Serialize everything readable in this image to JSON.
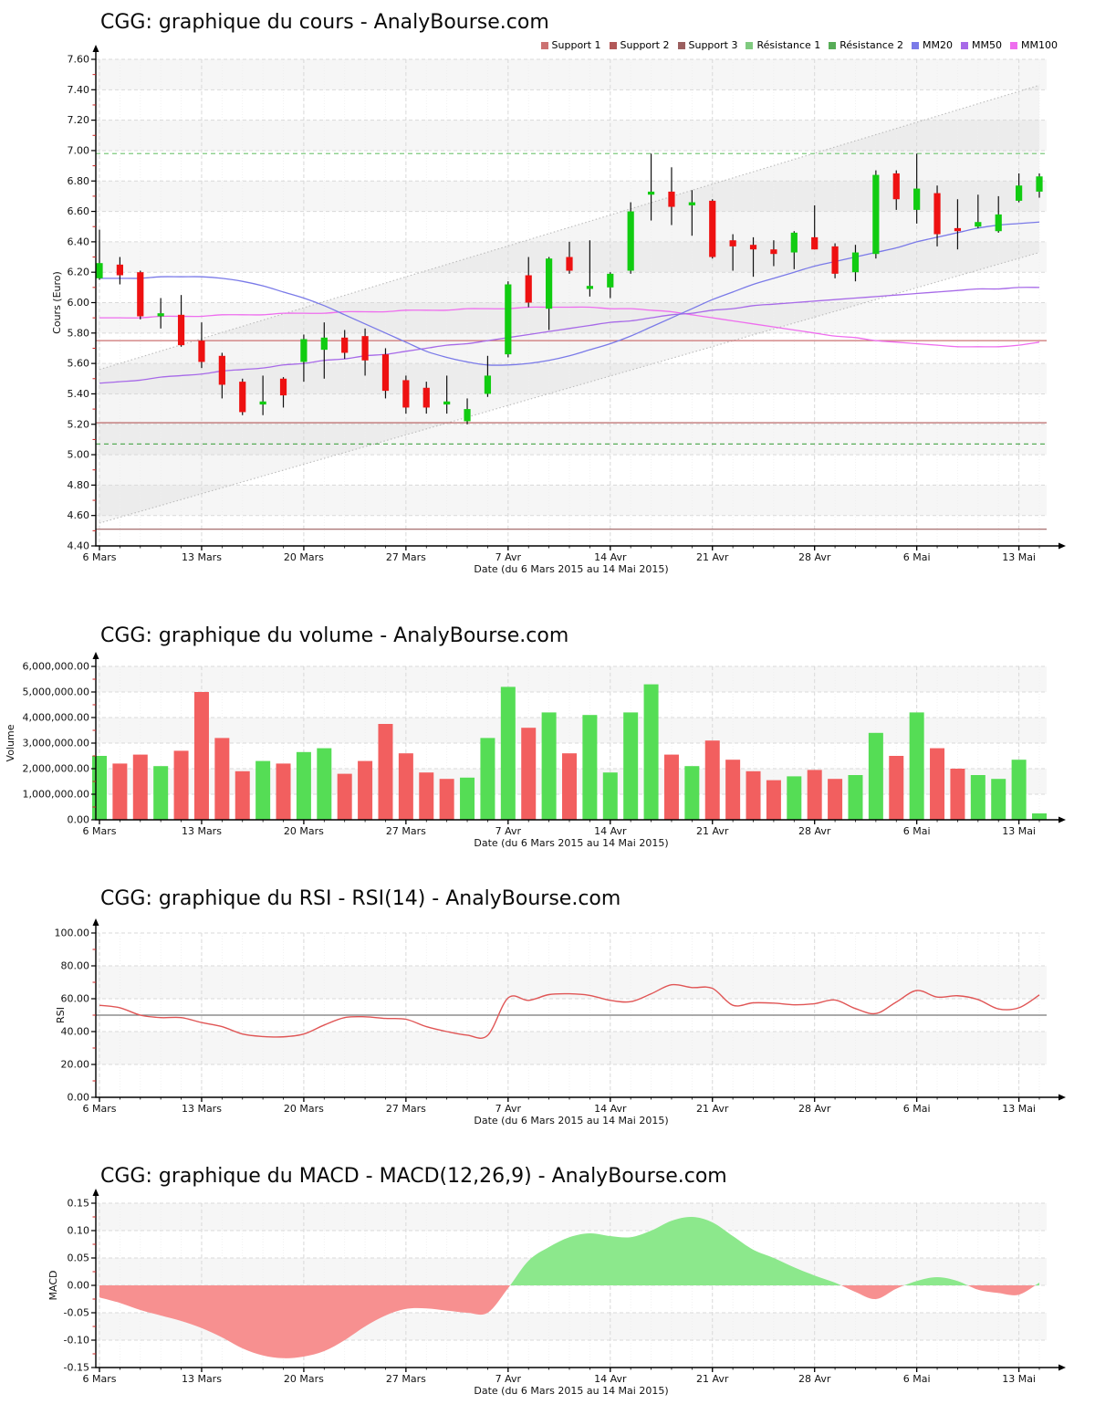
{
  "x_axis": {
    "tick_labels": [
      "6 Mars",
      "13 Mars",
      "20 Mars",
      "27 Mars",
      "7 Avr",
      "14 Avr",
      "21 Avr",
      "28 Avr",
      "6 Mai",
      "13 Mai"
    ],
    "tick_indices": [
      0,
      5,
      10,
      15,
      20,
      25,
      30,
      35,
      40,
      45
    ],
    "title": "Date (du 6 Mars 2015 au 14 Mai 2015)",
    "n_points": 47
  },
  "colors": {
    "candle_up": "#11cc11",
    "candle_down": "#ee1111",
    "wick": "#111111",
    "volume_up": "#55dd55",
    "volume_down": "#f25f5f",
    "macd_positive": "#8ce88c",
    "macd_negative": "#f79090",
    "rsi_line": "#e05555",
    "rsi_midline": "#777777",
    "mm20": "#7a7ae8",
    "mm50": "#a76ae8",
    "mm100": "#ee6dee",
    "support1": "#cc7272",
    "support2": "#b25858",
    "support3": "#9b5f5f",
    "resistance1": "#7fca7f",
    "resistance2": "#57ac57",
    "axis": "#000000",
    "minor_tick": "#cc2222",
    "grid": "#d9d9d9",
    "grid_daily": "#efefef",
    "band_gray": "#f6f6f6",
    "channel_line": "#bbbbbb",
    "channel_fill": "rgba(120,120,120,0.07)"
  },
  "chart_data": [
    {
      "id": "price",
      "type": "candlestick",
      "title": "CGG: graphique du cours - AnalyBourse.com",
      "ylabel": "Cours (Euro)",
      "y_axis": {
        "min": 4.4,
        "max": 7.6,
        "tick_labels": [
          "7.60",
          "7.40",
          "7.20",
          "7.00",
          "6.80",
          "6.60",
          "6.40",
          "6.20",
          "6.00",
          "5.80",
          "5.60",
          "5.40",
          "5.20",
          "5.00",
          "4.80",
          "4.60",
          "4.40"
        ]
      },
      "legend": [
        {
          "label": "Support 1",
          "color": "#cc7272"
        },
        {
          "label": "Support 2",
          "color": "#b25858"
        },
        {
          "label": "Support 3",
          "color": "#9b5f5f"
        },
        {
          "label": "Résistance 1",
          "color": "#7fca7f"
        },
        {
          "label": "Résistance 2",
          "color": "#57ac57"
        },
        {
          "label": "MM20",
          "color": "#7a7ae8"
        },
        {
          "label": "MM50",
          "color": "#a76ae8"
        },
        {
          "label": "MM100",
          "color": "#ee6dee"
        }
      ],
      "candles": {
        "open": [
          6.16,
          6.25,
          6.2,
          5.91,
          5.92,
          5.75,
          5.65,
          5.48,
          5.33,
          5.5,
          5.61,
          5.69,
          5.77,
          5.78,
          5.66,
          5.49,
          5.44,
          5.33,
          5.22,
          5.4,
          5.66,
          6.18,
          5.96,
          6.3,
          6.09,
          6.1,
          6.21,
          6.71,
          6.73,
          6.64,
          6.67,
          6.41,
          6.38,
          6.35,
          6.33,
          6.43,
          6.37,
          6.2,
          6.32,
          6.85,
          6.61,
          6.72,
          6.49,
          6.5,
          6.47,
          6.67,
          6.73
        ],
        "high": [
          6.48,
          6.3,
          6.21,
          6.03,
          6.05,
          5.87,
          5.67,
          5.5,
          5.52,
          5.51,
          5.79,
          5.87,
          5.82,
          5.83,
          5.7,
          5.52,
          5.48,
          5.52,
          5.37,
          5.65,
          6.14,
          6.3,
          6.3,
          6.4,
          6.41,
          6.2,
          6.66,
          6.98,
          6.89,
          6.74,
          6.68,
          6.45,
          6.43,
          6.41,
          6.47,
          6.64,
          6.39,
          6.38,
          6.87,
          6.87,
          6.98,
          6.77,
          6.68,
          6.71,
          6.7,
          6.85,
          6.85
        ],
        "low": [
          6.15,
          6.12,
          5.89,
          5.83,
          5.71,
          5.57,
          5.37,
          5.26,
          5.26,
          5.31,
          5.48,
          5.5,
          5.63,
          5.52,
          5.37,
          5.27,
          5.27,
          5.27,
          5.2,
          5.38,
          5.64,
          5.97,
          5.82,
          6.19,
          6.04,
          6.03,
          6.19,
          6.54,
          6.51,
          6.44,
          6.29,
          6.21,
          6.17,
          6.24,
          6.22,
          6.35,
          6.16,
          6.14,
          6.29,
          6.61,
          6.52,
          6.37,
          6.35,
          6.49,
          6.46,
          6.66,
          6.69
        ],
        "close": [
          6.26,
          6.18,
          5.91,
          5.93,
          5.72,
          5.61,
          5.46,
          5.28,
          5.35,
          5.39,
          5.76,
          5.77,
          5.67,
          5.62,
          5.42,
          5.31,
          5.31,
          5.35,
          5.3,
          5.52,
          6.12,
          6.0,
          6.29,
          6.21,
          6.11,
          6.19,
          6.6,
          6.73,
          6.63,
          6.66,
          6.3,
          6.37,
          6.35,
          6.32,
          6.46,
          6.35,
          6.19,
          6.33,
          6.84,
          6.68,
          6.75,
          6.45,
          6.47,
          6.53,
          6.58,
          6.77,
          6.83
        ]
      },
      "overlays": {
        "mm20": [
          6.16,
          6.16,
          6.16,
          6.17,
          6.17,
          6.17,
          6.16,
          6.14,
          6.11,
          6.07,
          6.03,
          5.98,
          5.92,
          5.86,
          5.8,
          5.74,
          5.68,
          5.64,
          5.61,
          5.59,
          5.59,
          5.6,
          5.62,
          5.65,
          5.69,
          5.73,
          5.78,
          5.84,
          5.9,
          5.96,
          6.02,
          6.07,
          6.12,
          6.16,
          6.2,
          6.24,
          6.27,
          6.3,
          6.33,
          6.36,
          6.4,
          6.43,
          6.46,
          6.49,
          6.51,
          6.52,
          6.53
        ],
        "mm50": [
          5.47,
          5.48,
          5.49,
          5.51,
          5.52,
          5.53,
          5.55,
          5.56,
          5.57,
          5.59,
          5.6,
          5.62,
          5.63,
          5.65,
          5.66,
          5.68,
          5.7,
          5.72,
          5.73,
          5.75,
          5.77,
          5.79,
          5.81,
          5.83,
          5.85,
          5.87,
          5.88,
          5.9,
          5.92,
          5.93,
          5.95,
          5.96,
          5.98,
          5.99,
          6.0,
          6.01,
          6.02,
          6.03,
          6.04,
          6.05,
          6.06,
          6.07,
          6.08,
          6.09,
          6.09,
          6.1,
          6.1
        ],
        "mm100": [
          5.9,
          5.9,
          5.9,
          5.91,
          5.91,
          5.91,
          5.92,
          5.92,
          5.92,
          5.93,
          5.93,
          5.93,
          5.94,
          5.94,
          5.94,
          5.95,
          5.95,
          5.95,
          5.96,
          5.96,
          5.96,
          5.97,
          5.97,
          5.97,
          5.97,
          5.96,
          5.96,
          5.95,
          5.94,
          5.92,
          5.9,
          5.88,
          5.86,
          5.84,
          5.82,
          5.8,
          5.78,
          5.77,
          5.75,
          5.74,
          5.73,
          5.72,
          5.71,
          5.71,
          5.71,
          5.72,
          5.74
        ]
      },
      "levels": {
        "support1": 5.75,
        "support2": 5.21,
        "support3": 4.51,
        "resistance1": 6.98,
        "resistance2": 5.07
      },
      "channel": {
        "upper_start": 5.56,
        "upper_end": 7.43,
        "lower_start": 4.55,
        "lower_end": 6.33
      }
    },
    {
      "id": "volume",
      "type": "bar",
      "title": "CGG: graphique du volume - AnalyBourse.com",
      "ylabel": "Volume",
      "y_axis": {
        "min": 0,
        "max": 6000000,
        "tick_labels": [
          "6,000,000.00",
          "5,000,000.00",
          "4,000,000.00",
          "3,000,000.00",
          "2,000,000.00",
          "1,000,000.00",
          "0.00"
        ]
      },
      "values": [
        2500000,
        2200000,
        2550000,
        2100000,
        2700000,
        5000000,
        3200000,
        1900000,
        2300000,
        2200000,
        2650000,
        2800000,
        1800000,
        2300000,
        3750000,
        2600000,
        1850000,
        1600000,
        1650000,
        3200000,
        5200000,
        3600000,
        4200000,
        2600000,
        4100000,
        1850000,
        4200000,
        5300000,
        2550000,
        2100000,
        3100000,
        2350000,
        1900000,
        1550000,
        1700000,
        1950000,
        1600000,
        1750000,
        3400000,
        2500000,
        4200000,
        2800000,
        2000000,
        1750000,
        1600000,
        2350000,
        250000
      ],
      "directions": [
        "u",
        "d",
        "d",
        "u",
        "d",
        "d",
        "d",
        "d",
        "u",
        "d",
        "u",
        "u",
        "d",
        "d",
        "d",
        "d",
        "d",
        "d",
        "u",
        "u",
        "u",
        "d",
        "u",
        "d",
        "u",
        "u",
        "u",
        "u",
        "d",
        "u",
        "d",
        "d",
        "d",
        "d",
        "u",
        "d",
        "d",
        "u",
        "u",
        "d",
        "u",
        "d",
        "d",
        "u",
        "u",
        "u",
        "u"
      ]
    },
    {
      "id": "rsi",
      "type": "line",
      "title": "CGG: graphique du RSI - RSI(14) - AnalyBourse.com",
      "ylabel": "RSI",
      "y_axis": {
        "min": 0,
        "max": 100,
        "tick_labels": [
          "100.00",
          "80.00",
          "60.00",
          "40.00",
          "20.00",
          "0.00"
        ]
      },
      "midline": 50,
      "values": [
        56,
        54.5,
        50,
        48.5,
        48.5,
        45.5,
        43,
        38.5,
        37,
        36.8,
        38.5,
        44,
        48.5,
        49,
        48,
        47.5,
        43,
        40,
        37.8,
        37.7,
        60.5,
        59,
        62.5,
        63,
        62,
        59,
        58.2,
        63,
        68.5,
        66.8,
        66.3,
        56,
        57.5,
        57.3,
        56.3,
        57,
        59.2,
        54,
        51,
        58,
        65,
        61,
        61.8,
        59.5,
        53.8,
        54.5,
        62.3
      ]
    },
    {
      "id": "macd",
      "type": "area",
      "title": "CGG: graphique du MACD - MACD(12,26,9) - AnalyBourse.com",
      "ylabel": "MACD",
      "y_axis": {
        "min": -0.15,
        "max": 0.15,
        "tick_labels": [
          "0.15",
          "0.10",
          "0.05",
          "0.00",
          "-0.05",
          "-0.10",
          "-0.15"
        ]
      },
      "values": [
        -0.022,
        -0.032,
        -0.045,
        -0.055,
        -0.065,
        -0.078,
        -0.095,
        -0.115,
        -0.128,
        -0.133,
        -0.13,
        -0.12,
        -0.1,
        -0.075,
        -0.055,
        -0.043,
        -0.042,
        -0.046,
        -0.05,
        -0.05,
        -0.005,
        0.045,
        0.07,
        0.088,
        0.095,
        0.09,
        0.088,
        0.1,
        0.118,
        0.125,
        0.115,
        0.09,
        0.065,
        0.05,
        0.033,
        0.018,
        0.005,
        -0.012,
        -0.025,
        -0.006,
        0.008,
        0.015,
        0.008,
        -0.008,
        -0.014,
        -0.017,
        0.005
      ]
    }
  ]
}
